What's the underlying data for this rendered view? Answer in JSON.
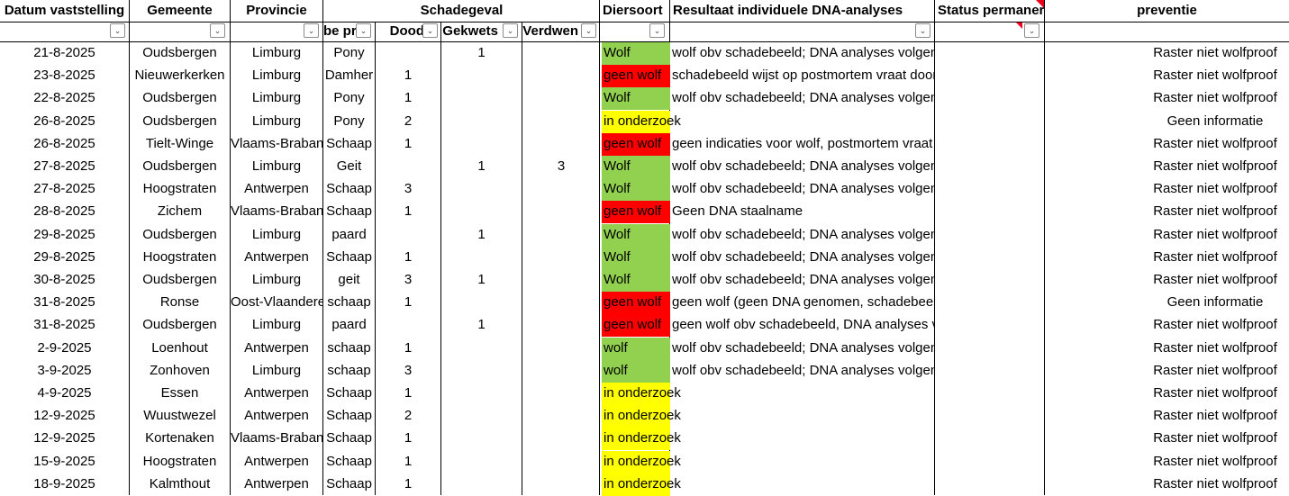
{
  "headers": {
    "datum": "Datum vaststelling",
    "gemeente": "Gemeente",
    "provincie": "Provincie",
    "schadegeval": "Schadegeval",
    "soort": "be pro",
    "dood": "Dood",
    "gekwetst": "Gekwets",
    "verdwenen": "Verdwen",
    "diersoort": "Diersoort",
    "resultaat": "Resultaat individuele DNA-analyses",
    "status": "Status permaner",
    "preventie": "preventie"
  },
  "filter_icon": "dropdown-arrow-icon",
  "colors": {
    "wolf": "#92d050",
    "geen_wolf": "#ff0000",
    "in_onderzoek": "#ffff00",
    "comment_marker": "#e8001c"
  },
  "rows": [
    {
      "datum": "21-8-2025",
      "gemeente": "Oudsbergen",
      "provincie": "Limburg",
      "soort": "Pony",
      "dood": "",
      "gekwetst": "1",
      "verdwenen": "",
      "diersoort": "Wolf",
      "kleur": "green",
      "resultaat": "wolf obv schadebeeld; DNA analyses volgen",
      "preventie": "Raster niet wolfproof"
    },
    {
      "datum": "23-8-2025",
      "gemeente": "Nieuwerkerken",
      "provincie": "Limburg",
      "soort": "Damher",
      "dood": "1",
      "gekwetst": "",
      "verdwenen": "",
      "diersoort": "geen wolf",
      "kleur": "red",
      "resultaat": "schadebeeld wijst op postmortem vraat door vos",
      "preventie": "Raster niet wolfproof"
    },
    {
      "datum": "22-8-2025",
      "gemeente": "Oudsbergen",
      "provincie": "Limburg",
      "soort": "Pony",
      "dood": "1",
      "gekwetst": "",
      "verdwenen": "",
      "diersoort": "Wolf",
      "kleur": "green",
      "resultaat": "wolf obv schadebeeld; DNA analyses volgen",
      "preventie": "Raster niet wolfproof"
    },
    {
      "datum": "26-8-2025",
      "gemeente": "Oudsbergen",
      "provincie": "Limburg",
      "soort": "Pony",
      "dood": "2",
      "gekwetst": "",
      "verdwenen": "",
      "diersoort": "in onderzoek",
      "kleur": "yellow",
      "resultaat": "",
      "preventie": "Geen informatie"
    },
    {
      "datum": "26-8-2025",
      "gemeente": "Tielt-Winge",
      "provincie": "Vlaams-Brabant",
      "soort": "Schaap",
      "dood": "1",
      "gekwetst": "",
      "verdwenen": "",
      "diersoort": "geen wolf",
      "kleur": "red",
      "resultaat": "geen indicaties voor wolf, postmortem vraat door vos",
      "preventie": "Raster niet wolfproof"
    },
    {
      "datum": "27-8-2025",
      "gemeente": "Oudsbergen",
      "provincie": "Limburg",
      "soort": "Geit",
      "dood": "",
      "gekwetst": "1",
      "verdwenen": "3",
      "diersoort": "Wolf",
      "kleur": "green",
      "resultaat": "wolf obv schadebeeld; DNA analyses volgen",
      "preventie": "Raster niet wolfproof"
    },
    {
      "datum": "27-8-2025",
      "gemeente": "Hoogstraten",
      "provincie": "Antwerpen",
      "soort": "Schaap",
      "dood": "3",
      "gekwetst": "",
      "verdwenen": "",
      "diersoort": "Wolf",
      "kleur": "green",
      "resultaat": "wolf obv schadebeeld; DNA analyses volgen",
      "preventie": "Raster niet wolfproof"
    },
    {
      "datum": "28-8-2025",
      "gemeente": "Zichem",
      "provincie": "Vlaams-Brabant",
      "soort": "Schaap",
      "dood": "1",
      "gekwetst": "",
      "verdwenen": "",
      "diersoort": "geen wolf",
      "kleur": "red",
      "resultaat": "Geen DNA staalname",
      "preventie": "Raster niet wolfproof"
    },
    {
      "datum": "29-8-2025",
      "gemeente": "Oudsbergen",
      "provincie": "Limburg",
      "soort": "paard",
      "dood": "",
      "gekwetst": "1",
      "verdwenen": "",
      "diersoort": "Wolf",
      "kleur": "green",
      "resultaat": "wolf obv schadebeeld; DNA analyses volgen",
      "preventie": "Raster niet wolfproof"
    },
    {
      "datum": "29-8-2025",
      "gemeente": "Hoogstraten",
      "provincie": "Antwerpen",
      "soort": "Schaap",
      "dood": "1",
      "gekwetst": "",
      "verdwenen": "",
      "diersoort": "Wolf",
      "kleur": "green",
      "resultaat": "wolf obv schadebeeld; DNA analyses volgen",
      "preventie": "Raster niet wolfproof"
    },
    {
      "datum": "30-8-2025",
      "gemeente": "Oudsbergen",
      "provincie": "Limburg",
      "soort": "geit",
      "dood": "3",
      "gekwetst": "1",
      "verdwenen": "",
      "diersoort": "Wolf",
      "kleur": "green",
      "resultaat": "wolf obv schadebeeld; DNA analyses volgen",
      "preventie": "Raster niet wolfproof"
    },
    {
      "datum": "31-8-2025",
      "gemeente": "Ronse",
      "provincie": "Oost-Vlaanderen",
      "soort": "schaap",
      "dood": "1",
      "gekwetst": "",
      "verdwenen": "",
      "diersoort": "geen wolf",
      "kleur": "red",
      "resultaat": "geen wolf (geen DNA genomen, schadebeeld voldoende d",
      "preventie": "Geen informatie"
    },
    {
      "datum": "31-8-2025",
      "gemeente": "Oudsbergen",
      "provincie": "Limburg",
      "soort": "paard",
      "dood": "",
      "gekwetst": "1",
      "verdwenen": "",
      "diersoort": "geen wolf",
      "kleur": "red",
      "resultaat": "geen wolf obv schadebeeld, DNA analyses volgen",
      "preventie": "Raster niet wolfproof"
    },
    {
      "datum": "2-9-2025",
      "gemeente": "Loenhout",
      "provincie": "Antwerpen",
      "soort": "schaap",
      "dood": "1",
      "gekwetst": "",
      "verdwenen": "",
      "diersoort": "wolf",
      "kleur": "green",
      "resultaat": "wolf obv schadebeeld; DNA analyses volgen",
      "preventie": "Raster niet wolfproof"
    },
    {
      "datum": "3-9-2025",
      "gemeente": "Zonhoven",
      "provincie": "Limburg",
      "soort": "schaap",
      "dood": "3",
      "gekwetst": "",
      "verdwenen": "",
      "diersoort": "wolf",
      "kleur": "green",
      "resultaat": "wolf obv schadebeeld; DNA analyses volgen",
      "preventie": "Raster niet wolfproof"
    },
    {
      "datum": "4-9-2025",
      "gemeente": "Essen",
      "provincie": "Antwerpen",
      "soort": "Schaap",
      "dood": "1",
      "gekwetst": "",
      "verdwenen": "",
      "diersoort": "in onderzoek",
      "kleur": "yellow",
      "resultaat": "",
      "preventie": "Raster niet wolfproof"
    },
    {
      "datum": "12-9-2025",
      "gemeente": "Wuustwezel",
      "provincie": "Antwerpen",
      "soort": "Schaap",
      "dood": "2",
      "gekwetst": "",
      "verdwenen": "",
      "diersoort": "in onderzoek",
      "kleur": "yellow",
      "resultaat": "",
      "preventie": "Raster niet wolfproof"
    },
    {
      "datum": "12-9-2025",
      "gemeente": "Kortenaken",
      "provincie": "Vlaams-Brabant",
      "soort": "Schaap",
      "dood": "1",
      "gekwetst": "",
      "verdwenen": "",
      "diersoort": "in onderzoek",
      "kleur": "yellow",
      "resultaat": "",
      "preventie": "Raster niet wolfproof"
    },
    {
      "datum": "15-9-2025",
      "gemeente": "Hoogstraten",
      "provincie": "Antwerpen",
      "soort": "Schaap",
      "dood": "1",
      "gekwetst": "",
      "verdwenen": "",
      "diersoort": "in onderzoek",
      "kleur": "yellow",
      "resultaat": "",
      "preventie": "Raster niet wolfproof"
    },
    {
      "datum": "18-9-2025",
      "gemeente": "Kalmthout",
      "provincie": "Antwerpen",
      "soort": "Schaap",
      "dood": "1",
      "gekwetst": "",
      "verdwenen": "",
      "diersoort": "in onderzoek",
      "kleur": "yellow",
      "resultaat": "",
      "preventie": "Raster niet wolfproof"
    }
  ]
}
